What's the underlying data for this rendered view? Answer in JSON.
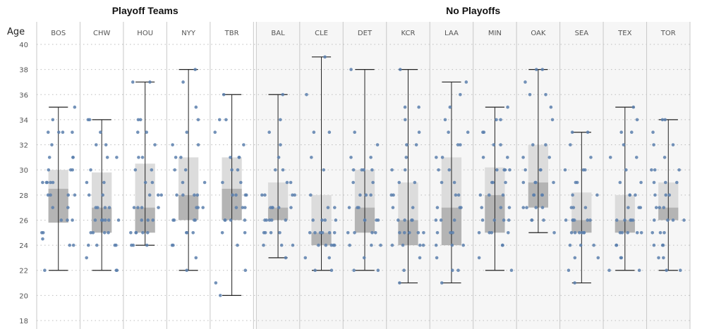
{
  "chart_data": {
    "type": "box",
    "ylabel": "Age",
    "ylim": [
      18,
      40
    ],
    "y_ticks": [
      18,
      20,
      22,
      24,
      26,
      28,
      30,
      32,
      34,
      36,
      38,
      40
    ],
    "grid": true,
    "colors": {
      "point": "#5b7fad",
      "box_upper": "#dcdcdc",
      "box_lower": "#b4b4b4",
      "whisker": "#222222",
      "nonplayoff_bg": "#f6f6f6",
      "divider": "#c8c8c8"
    },
    "groups": [
      {
        "title": "Playoff Teams",
        "teams": [
          {
            "team": "BOS",
            "min": 22,
            "q1": 25.8,
            "median": 28.5,
            "q3": 30,
            "max": 35,
            "points": [
              22,
              24,
              24,
              24.5,
              25,
              25,
              26,
              26,
              26,
              27,
              27,
              28,
              28,
              28,
              28,
              29,
              29,
              29,
              29,
              29,
              30,
              30,
              30,
              31,
              31,
              31,
              32,
              33,
              33,
              33,
              33,
              34,
              35
            ]
          },
          {
            "team": "CHW",
            "min": 22,
            "q1": 25,
            "median": 27,
            "q3": 29.8,
            "max": 34,
            "points": [
              22,
              22,
              23,
              24,
              24,
              24,
              24,
              25,
              25,
              25,
              25,
              26,
              26,
              26,
              26,
              26,
              26,
              27,
              27,
              27,
              27,
              28,
              28,
              29,
              29,
              30,
              31,
              31,
              32,
              32,
              33,
              34,
              34
            ]
          },
          {
            "team": "HOU",
            "min": 24,
            "q1": 25,
            "median": 27,
            "q3": 30.5,
            "max": 37,
            "points": [
              24,
              24,
              24,
              25,
              25,
              25,
              25,
              25,
              26,
              26,
              26,
              27,
              27,
              27,
              27,
              28,
              28,
              28,
              29,
              29,
              30,
              30,
              31,
              31,
              32,
              33,
              33,
              34,
              34,
              37,
              37
            ]
          },
          {
            "team": "NYY",
            "min": 22,
            "q1": 26,
            "median": 28,
            "q3": 31,
            "max": 38,
            "points": [
              22,
              23,
              24,
              24,
              25,
              25,
              25,
              26,
              26,
              26,
              26,
              27,
              27,
              27,
              28,
              28,
              28,
              28,
              29,
              29,
              30,
              30,
              31,
              31,
              32,
              32,
              33,
              34,
              35,
              37,
              38
            ]
          },
          {
            "team": "TBR",
            "min": 20,
            "q1": 26,
            "median": 28.5,
            "q3": 31,
            "max": 36,
            "points": [
              20,
              21,
              22,
              24,
              25,
              25,
              26,
              26,
              26,
              26,
              27,
              27,
              27,
              28,
              28,
              28,
              28,
              29,
              29,
              30,
              30,
              31,
              31,
              31,
              32,
              33,
              34,
              34,
              36
            ]
          }
        ]
      },
      {
        "title": "No Playoffs",
        "teams": [
          {
            "team": "BAL",
            "min": 23,
            "q1": 26,
            "median": 27,
            "q3": 29,
            "max": 36,
            "points": [
              23,
              24,
              24,
              24,
              25,
              25,
              25,
              25,
              26,
              26,
              26,
              26,
              26,
              27,
              27,
              27,
              27,
              27,
              28,
              28,
              28,
              28,
              29,
              29,
              30,
              30,
              31,
              32,
              33,
              34,
              36
            ]
          },
          {
            "team": "CLE",
            "min": 22,
            "q1": 24,
            "median": 25,
            "q3": 28,
            "max": 39,
            "points": [
              22,
              22,
              23,
              23,
              24,
              24,
              24,
              24,
              24,
              25,
              25,
              25,
              25,
              25,
              25,
              26,
              26,
              26,
              26,
              27,
              27,
              28,
              30,
              31,
              33,
              33,
              36,
              39
            ]
          },
          {
            "team": "DET",
            "min": 22,
            "q1": 25,
            "median": 27,
            "q3": 30,
            "max": 38,
            "points": [
              22,
              22,
              23,
              24,
              24,
              24,
              25,
              25,
              25,
              25,
              26,
              26,
              26,
              26,
              27,
              27,
              27,
              28,
              28,
              28,
              29,
              29,
              30,
              30,
              30,
              30,
              31,
              31,
              32,
              33,
              38
            ]
          },
          {
            "team": "KCR",
            "min": 21,
            "q1": 24,
            "median": 26,
            "q3": 29,
            "max": 38,
            "points": [
              21,
              22,
              23,
              24,
              24,
              24,
              24,
              25,
              25,
              25,
              25,
              25,
              26,
              26,
              26,
              26,
              27,
              27,
              28,
              28,
              29,
              29,
              30,
              30,
              31,
              32,
              32,
              33,
              34,
              35,
              35,
              38
            ]
          },
          {
            "team": "LAA",
            "min": 21,
            "q1": 24,
            "median": 27,
            "q3": 31,
            "max": 37,
            "points": [
              21,
              22,
              22,
              23,
              24,
              24,
              24,
              25,
              25,
              25,
              26,
              26,
              26,
              27,
              27,
              27,
              28,
              28,
              29,
              29,
              30,
              30,
              31,
              31,
              32,
              32,
              33,
              33,
              34,
              35,
              36,
              37
            ]
          },
          {
            "team": "MIN",
            "min": 22,
            "q1": 25,
            "median": 28,
            "q3": 30.2,
            "max": 35,
            "points": [
              22,
              23,
              24,
              24,
              25,
              25,
              25,
              25,
              26,
              26,
              26,
              26,
              27,
              27,
              27,
              28,
              28,
              28,
              29,
              29,
              29,
              30,
              30,
              30,
              30,
              31,
              31,
              32,
              32,
              33,
              33,
              34,
              34,
              35
            ]
          },
          {
            "team": "OAK",
            "min": 25,
            "q1": 27,
            "median": 29,
            "q3": 32,
            "max": 38,
            "points": [
              25,
              26,
              26,
              26,
              27,
              27,
              27,
              27,
              28,
              28,
              28,
              28,
              29,
              29,
              29,
              29,
              30,
              30,
              30,
              31,
              31,
              32,
              32,
              34,
              35,
              36,
              36,
              37,
              38,
              38
            ]
          },
          {
            "team": "SEA",
            "min": 21,
            "q1": 25,
            "median": 26,
            "q3": 28.2,
            "max": 33,
            "points": [
              21,
              22,
              23,
              23,
              24,
              24,
              24,
              25,
              25,
              25,
              25,
              25,
              25,
              26,
              26,
              26,
              26,
              26,
              26,
              27,
              27,
              27,
              28,
              28,
              29,
              29,
              30,
              30,
              30,
              31,
              32,
              33,
              33
            ]
          },
          {
            "team": "TEX",
            "min": 22,
            "q1": 25,
            "median": 26,
            "q3": 28,
            "max": 35,
            "points": [
              22,
              22,
              23,
              23,
              24,
              24,
              25,
              25,
              25,
              25,
              25,
              26,
              26,
              26,
              26,
              26,
              27,
              27,
              27,
              28,
              28,
              28,
              29,
              29,
              30,
              31,
              31,
              32,
              33,
              33,
              34,
              35
            ]
          },
          {
            "team": "TOR",
            "min": 22,
            "q1": 26,
            "median": 27,
            "q3": 29,
            "max": 34,
            "points": [
              22,
              22,
              23,
              23,
              24,
              24,
              24,
              25,
              25,
              25,
              26,
              26,
              26,
              26,
              27,
              27,
              27,
              28,
              28,
              28,
              29,
              29,
              29,
              30,
              30,
              30,
              31,
              32,
              32,
              33,
              34,
              34
            ]
          }
        ]
      }
    ]
  }
}
